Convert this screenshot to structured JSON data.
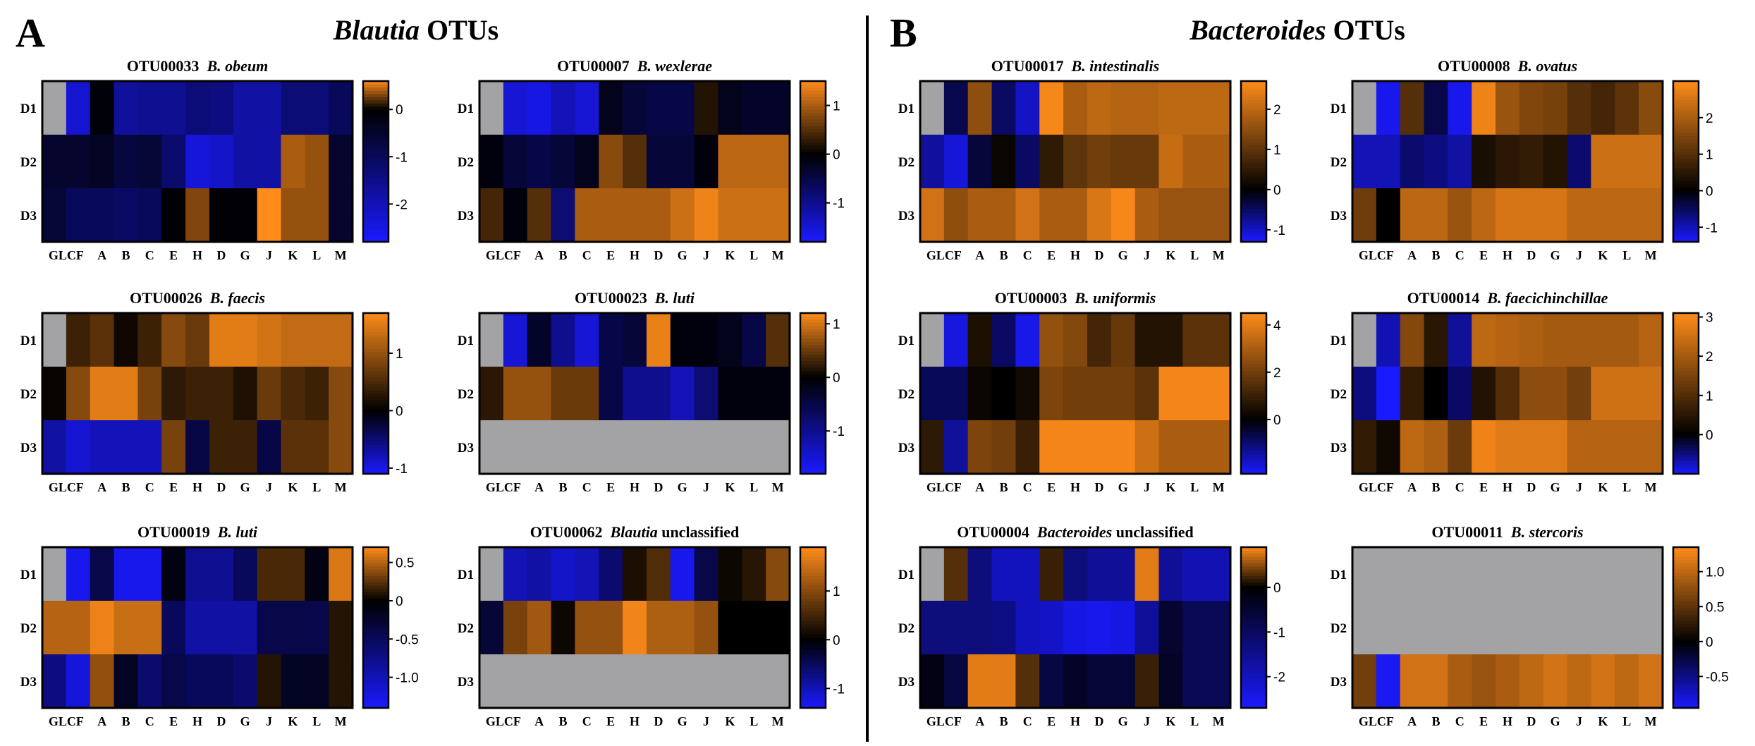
{
  "figure": {
    "left_letter": "A",
    "right_letter": "B",
    "left_title_italic": "Blautia",
    "left_title_rest": " OTUs",
    "right_title_italic": "Bacteroides",
    "right_title_rest": " OTUs"
  },
  "colors": {
    "high": "#ff8c1a",
    "mid": "#000000",
    "low": "#1a1aff",
    "missing": "#a3a3a6",
    "frame": "#000000",
    "divider": "#000000"
  },
  "chart_data": [
    {
      "type": "heatmap",
      "title_otu": "OTU00033",
      "title_taxon_italic": "B. obeum",
      "title_suffix": "",
      "columns": [
        "GL",
        "CF",
        "A",
        "B",
        "C",
        "E",
        "H",
        "D",
        "G",
        "J",
        "K",
        "L",
        "M"
      ],
      "x_tick_labels": [
        "GLCF",
        "A",
        "B",
        "C",
        "E",
        "H",
        "D",
        "G",
        "J",
        "K",
        "L",
        "M"
      ],
      "rows": [
        "D1",
        "D2",
        "D3"
      ],
      "vmin": -2.8,
      "vmax": 0.6,
      "colorbar_ticks": [
        {
          "value": 0,
          "label": "0"
        },
        {
          "value": -1,
          "label": "-1"
        },
        {
          "value": -2,
          "label": "-2"
        }
      ],
      "values": [
        [
          null,
          -2.3,
          -0.1,
          -1.7,
          -1.6,
          -1.6,
          -1.3,
          -1.4,
          -1.8,
          -1.8,
          -1.3,
          -1.3,
          -1.0
        ],
        [
          -0.5,
          -0.5,
          -0.4,
          -0.7,
          -0.6,
          -1.2,
          -2.4,
          -2.2,
          -1.8,
          -1.8,
          0.4,
          0.35,
          -0.5
        ],
        [
          -0.6,
          -1.0,
          -1.0,
          -1.1,
          -1.0,
          -0.05,
          0.3,
          -0.05,
          -0.05,
          0.6,
          0.35,
          0.35,
          -0.5
        ]
      ]
    },
    {
      "type": "heatmap",
      "title_otu": "OTU00007",
      "title_taxon_italic": "B. wexlerae",
      "title_suffix": "",
      "columns": [
        "GL",
        "CF",
        "A",
        "B",
        "C",
        "E",
        "H",
        "D",
        "G",
        "J",
        "K",
        "L",
        "M"
      ],
      "x_tick_labels": [
        "GLCF",
        "A",
        "B",
        "C",
        "E",
        "H",
        "D",
        "G",
        "J",
        "K",
        "L",
        "M"
      ],
      "rows": [
        "D1",
        "D2",
        "D3"
      ],
      "vmin": -1.8,
      "vmax": 1.5,
      "colorbar_ticks": [
        {
          "value": 1,
          "label": "1"
        },
        {
          "value": 0,
          "label": "0"
        },
        {
          "value": -1,
          "label": "-1"
        }
      ],
      "values": [
        [
          null,
          -1.5,
          -1.6,
          -1.3,
          -1.5,
          -0.2,
          -0.4,
          -0.5,
          -0.5,
          0.2,
          -0.2,
          -0.3,
          -0.3
        ],
        [
          -0.1,
          -0.4,
          -0.5,
          -0.4,
          -0.2,
          0.8,
          0.5,
          -0.4,
          -0.4,
          -0.1,
          1.1,
          1.1,
          1.1
        ],
        [
          0.4,
          -0.1,
          0.5,
          -0.8,
          1.0,
          1.0,
          1.0,
          1.0,
          1.2,
          1.4,
          1.2,
          1.2,
          1.2
        ]
      ]
    },
    {
      "type": "heatmap",
      "title_otu": "OTU00026",
      "title_taxon_italic": "B. faecis",
      "title_suffix": "",
      "columns": [
        "GL",
        "CF",
        "A",
        "B",
        "C",
        "E",
        "H",
        "D",
        "G",
        "J",
        "K",
        "L",
        "M"
      ],
      "x_tick_labels": [
        "GLCF",
        "A",
        "B",
        "C",
        "E",
        "H",
        "D",
        "G",
        "J",
        "K",
        "L",
        "M"
      ],
      "rows": [
        "D1",
        "D2",
        "D3"
      ],
      "vmin": -1.1,
      "vmax": 1.7,
      "colorbar_ticks": [
        {
          "value": 1,
          "label": "1"
        },
        {
          "value": 0,
          "label": "0"
        },
        {
          "value": -1,
          "label": "-1"
        }
      ],
      "values": [
        [
          null,
          0.4,
          0.6,
          0.1,
          0.4,
          0.9,
          0.7,
          1.5,
          1.5,
          1.4,
          1.3,
          1.3,
          1.3
        ],
        [
          0.05,
          0.9,
          1.5,
          1.5,
          0.8,
          0.3,
          0.4,
          0.4,
          0.2,
          0.7,
          0.5,
          0.4,
          0.9
        ],
        [
          -0.7,
          -0.9,
          -0.8,
          -0.8,
          -0.8,
          0.8,
          -0.3,
          0.4,
          0.4,
          -0.3,
          0.6,
          0.6,
          0.9
        ]
      ]
    },
    {
      "type": "heatmap",
      "title_otu": "OTU00023",
      "title_taxon_italic": "B. luti",
      "title_suffix": "",
      "columns": [
        "GL",
        "CF",
        "A",
        "B",
        "C",
        "E",
        "H",
        "D",
        "G",
        "J",
        "K",
        "L",
        "M"
      ],
      "x_tick_labels": [
        "GLCF",
        "A",
        "B",
        "C",
        "E",
        "H",
        "D",
        "G",
        "J",
        "K",
        "L",
        "M"
      ],
      "rows": [
        "D1",
        "D2",
        "D3"
      ],
      "vmin": -1.8,
      "vmax": 1.2,
      "colorbar_ticks": [
        {
          "value": 1,
          "label": "1"
        },
        {
          "value": 0,
          "label": "0"
        },
        {
          "value": -1,
          "label": "-1"
        }
      ],
      "values": [
        [
          null,
          -1.5,
          -0.3,
          -1.0,
          -1.5,
          -0.5,
          -0.4,
          1.1,
          -0.1,
          -0.1,
          -0.2,
          -0.5,
          0.4
        ],
        [
          0.2,
          0.7,
          0.7,
          0.5,
          0.5,
          -0.5,
          -1.0,
          -1.0,
          -1.3,
          -0.8,
          -0.1,
          -0.1,
          -0.1
        ],
        [
          null,
          null,
          null,
          null,
          null,
          null,
          null,
          null,
          null,
          null,
          null,
          null,
          null
        ]
      ]
    },
    {
      "type": "heatmap",
      "title_otu": "OTU00019",
      "title_taxon_italic": "B. luti",
      "title_suffix": "",
      "columns": [
        "GL",
        "CF",
        "A",
        "B",
        "C",
        "E",
        "H",
        "D",
        "G",
        "J",
        "K",
        "L",
        "M"
      ],
      "x_tick_labels": [
        "GLCF",
        "A",
        "B",
        "C",
        "E",
        "H",
        "D",
        "G",
        "J",
        "K",
        "L",
        "M"
      ],
      "rows": [
        "D1",
        "D2",
        "D3"
      ],
      "vmin": -1.4,
      "vmax": 0.7,
      "colorbar_ticks": [
        {
          "value": 0.5,
          "label": "0.5"
        },
        {
          "value": 0,
          "label": "0"
        },
        {
          "value": -0.5,
          "label": "-0.5"
        },
        {
          "value": -1,
          "label": "-1.0"
        }
      ],
      "values": [
        [
          null,
          -1.3,
          -0.4,
          -1.3,
          -1.3,
          -0.1,
          -0.8,
          -0.8,
          -0.5,
          0.2,
          0.2,
          -0.1,
          0.6
        ],
        [
          0.5,
          0.5,
          0.65,
          0.55,
          0.55,
          -0.5,
          -0.9,
          -0.9,
          -0.9,
          -0.4,
          -0.4,
          -0.4,
          0.1
        ],
        [
          -0.7,
          -1.2,
          0.4,
          -0.2,
          -0.6,
          -0.4,
          -0.5,
          -0.5,
          -0.6,
          0.1,
          -0.2,
          -0.2,
          0.1
        ]
      ]
    },
    {
      "type": "heatmap",
      "title_otu": "OTU00062",
      "title_taxon_italic": "Blautia",
      "title_suffix": " unclassified",
      "columns": [
        "GL",
        "CF",
        "A",
        "B",
        "C",
        "E",
        "H",
        "D",
        "G",
        "J",
        "K",
        "L",
        "M"
      ],
      "x_tick_labels": [
        "GLCF",
        "A",
        "B",
        "C",
        "E",
        "H",
        "D",
        "G",
        "J",
        "K",
        "L",
        "M"
      ],
      "rows": [
        "D1",
        "D2",
        "D3"
      ],
      "vmin": -1.4,
      "vmax": 1.9,
      "colorbar_ticks": [
        {
          "value": 1,
          "label": "1"
        },
        {
          "value": 0,
          "label": "0"
        },
        {
          "value": -1,
          "label": "-1"
        }
      ],
      "values": [
        [
          null,
          -1.0,
          -0.9,
          -1.1,
          -1.0,
          -0.6,
          0.2,
          0.6,
          -1.3,
          -0.4,
          0.1,
          0.3,
          1.0
        ],
        [
          -0.3,
          0.9,
          1.2,
          0.1,
          1.1,
          1.1,
          1.8,
          1.3,
          1.3,
          1.1,
          0.0,
          0.0,
          0.0
        ],
        [
          null,
          null,
          null,
          null,
          null,
          null,
          null,
          null,
          null,
          null,
          null,
          null,
          null
        ]
      ]
    },
    {
      "type": "heatmap",
      "title_otu": "OTU00017",
      "title_taxon_italic": "B. intestinalis",
      "title_suffix": "",
      "columns": [
        "GL",
        "CF",
        "A",
        "B",
        "C",
        "E",
        "H",
        "D",
        "G",
        "J",
        "K",
        "L",
        "M"
      ],
      "x_tick_labels": [
        "GLCF",
        "A",
        "B",
        "C",
        "E",
        "H",
        "D",
        "G",
        "J",
        "K",
        "L",
        "M"
      ],
      "rows": [
        "D1",
        "D2",
        "D3"
      ],
      "vmin": -1.3,
      "vmax": 2.7,
      "colorbar_ticks": [
        {
          "value": 2,
          "label": "2"
        },
        {
          "value": 1,
          "label": "1"
        },
        {
          "value": 0,
          "label": "0"
        },
        {
          "value": -1,
          "label": "-1"
        }
      ],
      "values": [
        [
          null,
          -0.4,
          1.5,
          -0.5,
          -1.0,
          2.6,
          1.8,
          2.0,
          1.9,
          1.9,
          2.0,
          2.0,
          2.0
        ],
        [
          -0.8,
          -1.1,
          -0.3,
          0.1,
          -0.5,
          0.5,
          1.0,
          1.2,
          1.1,
          1.1,
          2.1,
          1.8,
          1.8
        ],
        [
          2.2,
          1.5,
          1.8,
          1.8,
          2.2,
          1.8,
          1.8,
          2.3,
          2.6,
          1.8,
          1.6,
          1.6,
          1.6
        ]
      ]
    },
    {
      "type": "heatmap",
      "title_otu": "OTU00008",
      "title_taxon_italic": "B. ovatus",
      "title_suffix": "",
      "columns": [
        "GL",
        "CF",
        "A",
        "B",
        "C",
        "E",
        "H",
        "D",
        "G",
        "J",
        "K",
        "L",
        "M"
      ],
      "x_tick_labels": [
        "GLCF",
        "A",
        "B",
        "C",
        "E",
        "H",
        "D",
        "G",
        "J",
        "K",
        "L",
        "M"
      ],
      "rows": [
        "D1",
        "D2",
        "D3"
      ],
      "vmin": -1.4,
      "vmax": 3.0,
      "colorbar_ticks": [
        {
          "value": 2,
          "label": "2"
        },
        {
          "value": 1,
          "label": "1"
        },
        {
          "value": 0,
          "label": "0"
        },
        {
          "value": -1,
          "label": "-1"
        }
      ],
      "values": [
        [
          null,
          -1.3,
          1.0,
          -0.4,
          -1.3,
          2.8,
          1.8,
          1.5,
          1.4,
          1.0,
          0.8,
          1.1,
          1.6
        ],
        [
          -1.0,
          -1.0,
          -0.6,
          -0.7,
          -0.9,
          0.3,
          0.5,
          0.6,
          0.4,
          -0.6,
          2.4,
          2.4,
          2.4
        ],
        [
          1.3,
          0.0,
          2.2,
          2.2,
          1.8,
          2.2,
          2.5,
          2.5,
          2.5,
          2.2,
          2.2,
          2.2,
          2.2
        ]
      ]
    },
    {
      "type": "heatmap",
      "title_otu": "OTU00003",
      "title_taxon_italic": "B. uniformis",
      "title_suffix": "",
      "columns": [
        "GL",
        "CF",
        "A",
        "B",
        "C",
        "E",
        "H",
        "D",
        "G",
        "J",
        "K",
        "L",
        "M"
      ],
      "x_tick_labels": [
        "GLCF",
        "A",
        "B",
        "C",
        "E",
        "H",
        "D",
        "G",
        "J",
        "K",
        "L",
        "M"
      ],
      "rows": [
        "D1",
        "D2",
        "D3"
      ],
      "vmin": -2.3,
      "vmax": 4.5,
      "colorbar_ticks": [
        {
          "value": 4,
          "label": "4"
        },
        {
          "value": 2,
          "label": "2"
        },
        {
          "value": 0,
          "label": "0"
        }
      ],
      "values": [
        [
          null,
          -2.0,
          0.5,
          -0.9,
          -2.1,
          2.6,
          2.3,
          1.2,
          1.8,
          0.6,
          0.6,
          1.6,
          1.6
        ],
        [
          -0.8,
          -0.8,
          0.2,
          0.0,
          0.3,
          2.2,
          2.0,
          2.0,
          2.0,
          1.6,
          4.3,
          4.3,
          4.3
        ],
        [
          0.8,
          -1.4,
          2.2,
          2.0,
          1.0,
          4.3,
          4.3,
          4.3,
          4.3,
          3.6,
          3.0,
          3.0,
          3.0
        ]
      ]
    },
    {
      "type": "heatmap",
      "title_otu": "OTU00014",
      "title_taxon_italic": "B. faecichinchillae",
      "title_suffix": "",
      "columns": [
        "GL",
        "CF",
        "A",
        "B",
        "C",
        "E",
        "H",
        "D",
        "G",
        "J",
        "K",
        "L",
        "M"
      ],
      "x_tick_labels": [
        "GLCF",
        "A",
        "B",
        "C",
        "E",
        "H",
        "D",
        "G",
        "J",
        "K",
        "L",
        "M"
      ],
      "rows": [
        "D1",
        "D2",
        "D3"
      ],
      "vmin": -1.0,
      "vmax": 3.1,
      "colorbar_ticks": [
        {
          "value": 3,
          "label": "3"
        },
        {
          "value": 2,
          "label": "2"
        },
        {
          "value": 1,
          "label": "1"
        },
        {
          "value": 0,
          "label": "0"
        }
      ],
      "values": [
        [
          null,
          -0.7,
          1.6,
          0.5,
          -0.6,
          2.3,
          2.2,
          2.1,
          2.0,
          2.0,
          2.0,
          2.0,
          2.2
        ],
        [
          -0.5,
          -1.0,
          0.6,
          0.0,
          -0.4,
          0.4,
          1.0,
          1.7,
          1.7,
          1.4,
          2.5,
          2.5,
          2.5
        ],
        [
          0.6,
          0.2,
          2.3,
          2.1,
          1.3,
          2.9,
          2.7,
          2.7,
          2.7,
          2.2,
          2.2,
          2.2,
          2.2
        ]
      ]
    },
    {
      "type": "heatmap",
      "title_otu": "OTU00004",
      "title_taxon_italic": "Bacteroides",
      "title_suffix": " unclassified",
      "columns": [
        "GL",
        "CF",
        "A",
        "B",
        "C",
        "E",
        "H",
        "D",
        "G",
        "J",
        "K",
        "L",
        "M"
      ],
      "x_tick_labels": [
        "GLCF",
        "A",
        "B",
        "C",
        "E",
        "H",
        "D",
        "G",
        "J",
        "K",
        "L",
        "M"
      ],
      "rows": [
        "D1",
        "D2",
        "D3"
      ],
      "vmin": -2.7,
      "vmax": 0.9,
      "colorbar_ticks": [
        {
          "value": 0,
          "label": "0"
        },
        {
          "value": -1,
          "label": "-1"
        },
        {
          "value": -2,
          "label": "-2"
        }
      ],
      "values": [
        [
          null,
          0.3,
          -1.3,
          -2.0,
          -2.0,
          0.2,
          -1.3,
          -1.6,
          -1.6,
          0.8,
          -1.6,
          -1.9,
          -1.9
        ],
        [
          -1.3,
          -1.3,
          -1.3,
          -1.4,
          -2.0,
          -2.1,
          -2.4,
          -2.5,
          -2.4,
          -1.6,
          -0.5,
          -0.9,
          -0.9
        ],
        [
          -0.2,
          -0.7,
          0.8,
          0.8,
          0.3,
          -0.7,
          -0.4,
          -0.6,
          -0.6,
          0.2,
          -0.4,
          -0.9,
          -0.9
        ]
      ]
    },
    {
      "type": "heatmap",
      "title_otu": "OTU00011",
      "title_taxon_italic": "B. stercoris",
      "title_suffix": "",
      "columns": [
        "GL",
        "CF",
        "A",
        "B",
        "C",
        "E",
        "H",
        "D",
        "G",
        "J",
        "K",
        "L",
        "M"
      ],
      "x_tick_labels": [
        "GLCF",
        "A",
        "B",
        "C",
        "E",
        "H",
        "D",
        "G",
        "J",
        "K",
        "L",
        "M"
      ],
      "rows": [
        "D1",
        "D2",
        "D3"
      ],
      "vmin": -0.95,
      "vmax": 1.35,
      "colorbar_ticks": [
        {
          "value": 1,
          "label": "1.0"
        },
        {
          "value": 0.5,
          "label": "0.5"
        },
        {
          "value": 0,
          "label": "0"
        },
        {
          "value": -0.5,
          "label": "-0.5"
        }
      ],
      "values": [
        [
          null,
          null,
          null,
          null,
          null,
          null,
          null,
          null,
          null,
          null,
          null,
          null,
          null
        ],
        [
          null,
          null,
          null,
          null,
          null,
          null,
          null,
          null,
          null,
          null,
          null,
          null,
          null
        ],
        [
          0.6,
          -0.9,
          1.1,
          1.1,
          0.9,
          0.8,
          0.9,
          1.0,
          1.1,
          1.0,
          1.1,
          1.0,
          1.1
        ]
      ]
    }
  ]
}
